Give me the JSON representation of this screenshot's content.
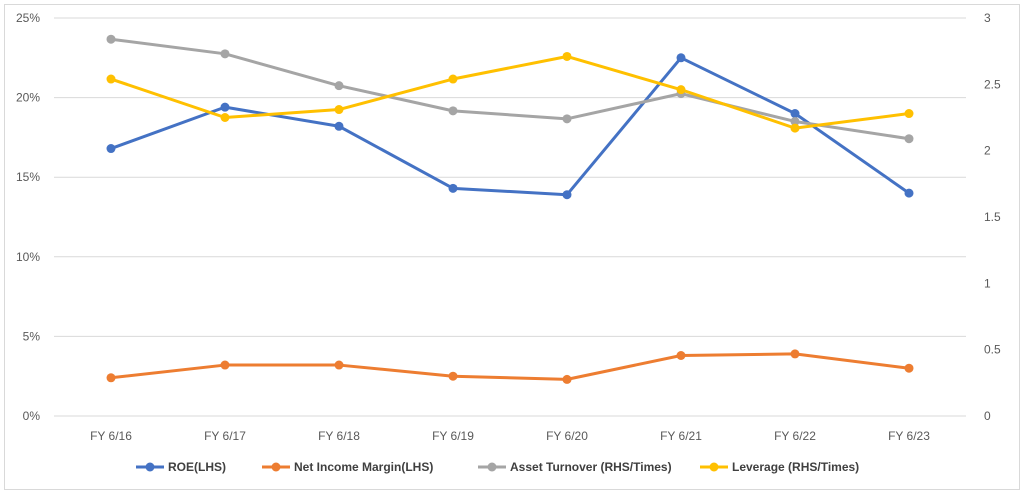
{
  "chart_data": {
    "type": "line",
    "title": "",
    "xlabel": "",
    "ylabel_left": "",
    "ylabel_right": "",
    "categories": [
      "FY 6/16",
      "FY 6/17",
      "FY 6/18",
      "FY 6/19",
      "FY 6/20",
      "FY 6/21",
      "FY 6/22",
      "FY 6/23"
    ],
    "y_left": {
      "min": 0,
      "max": 25,
      "step": 5,
      "ticks": [
        "0%",
        "5%",
        "10%",
        "15%",
        "20%",
        "25%"
      ]
    },
    "y_right": {
      "min": 0,
      "max": 3,
      "step": 0.5,
      "ticks": [
        "0",
        "0.5",
        "1",
        "1.5",
        "2",
        "2.5",
        "3"
      ]
    },
    "grid": true,
    "legend_position": "bottom",
    "series": [
      {
        "name": "ROE(LHS)",
        "axis": "left",
        "color": "#4472c4",
        "values": [
          16.8,
          19.4,
          18.2,
          14.3,
          13.9,
          22.5,
          19.0,
          14.0
        ]
      },
      {
        "name": "Net Income Margin(LHS)",
        "axis": "left",
        "color": "#ed7d31",
        "values": [
          2.4,
          3.2,
          3.2,
          2.5,
          2.3,
          3.8,
          3.9,
          3.0
        ]
      },
      {
        "name": "Asset Turnover (RHS/Times)",
        "axis": "right",
        "color": "#a5a5a5",
        "values": [
          2.84,
          2.73,
          2.49,
          2.3,
          2.24,
          2.43,
          2.22,
          2.09
        ]
      },
      {
        "name": "Leverage (RHS/Times)",
        "axis": "right",
        "color": "#ffc000",
        "values": [
          2.54,
          2.25,
          2.31,
          2.54,
          2.71,
          2.46,
          2.17,
          2.28
        ]
      }
    ]
  }
}
